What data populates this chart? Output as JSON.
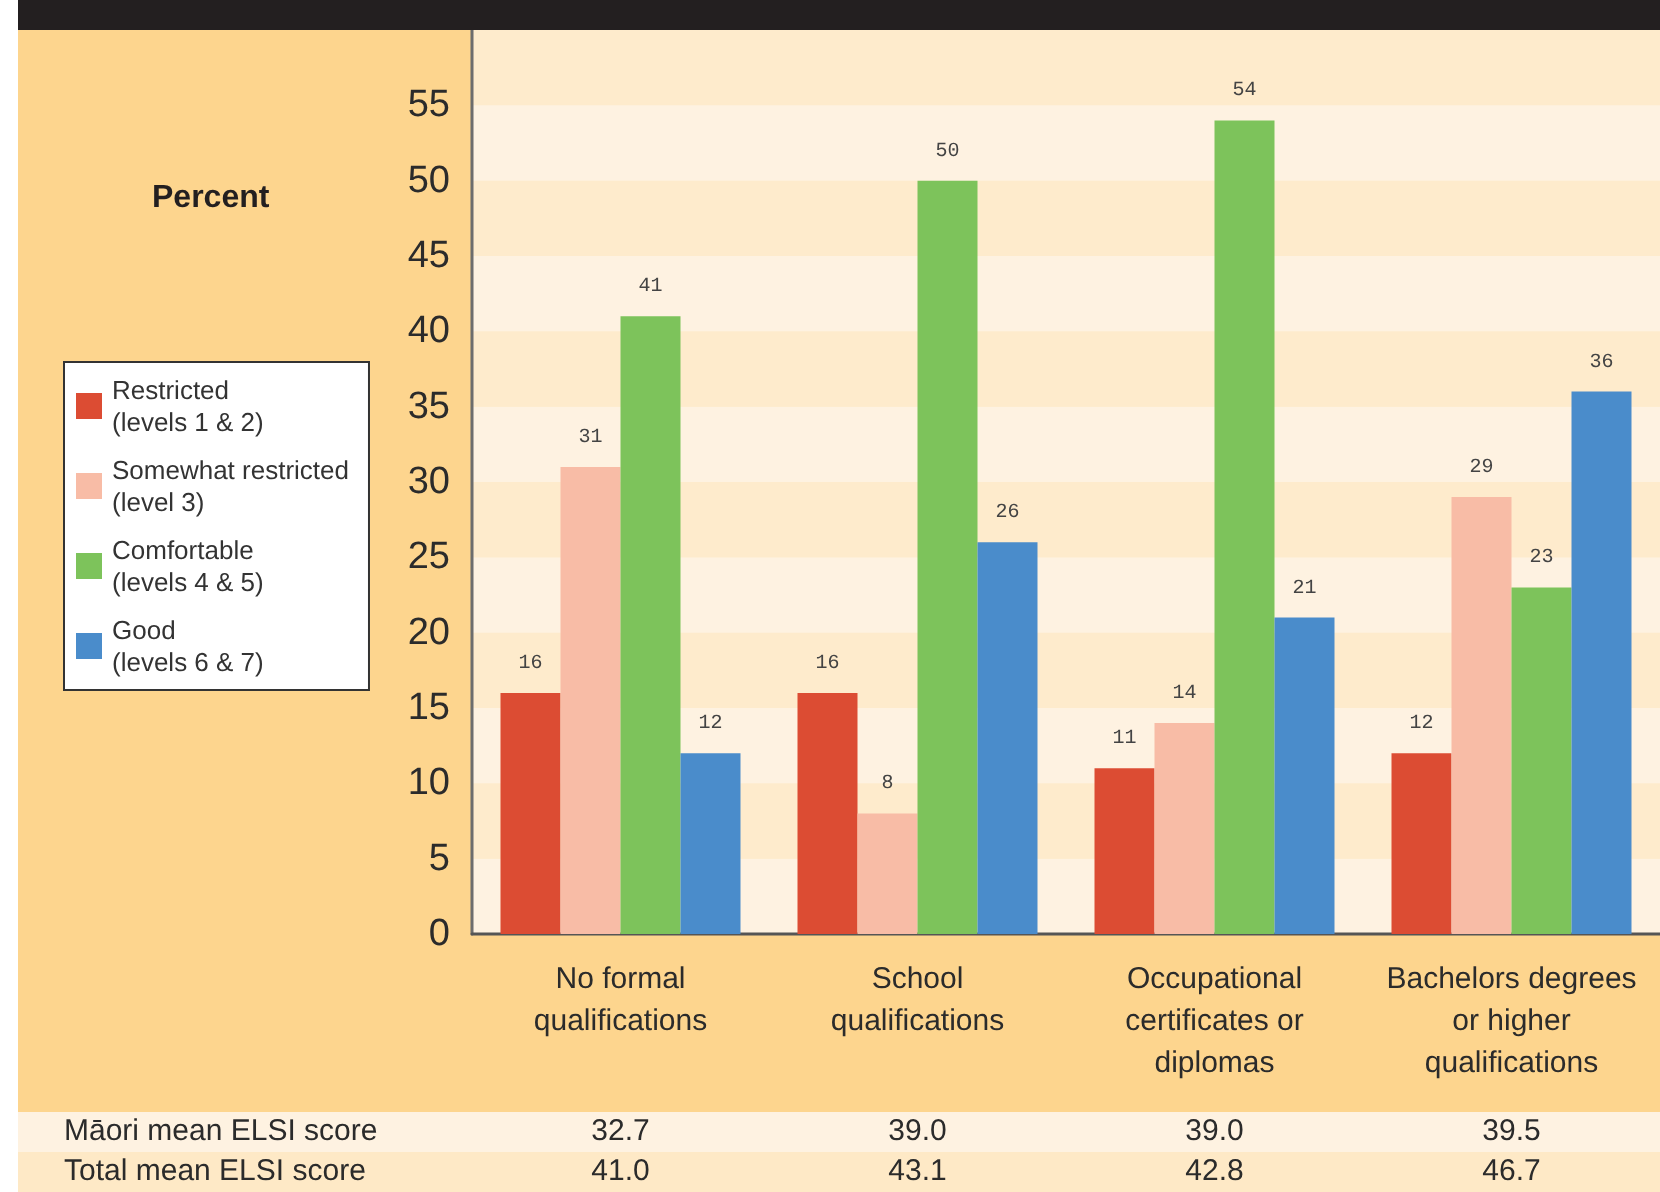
{
  "chart_data": {
    "type": "bar",
    "ylabel": "Percent",
    "categories": [
      "No formal\nqualifications",
      "School\nqualifications",
      "Occupational\ncertificates or\ndiplomas",
      "Bachelors degrees\nor higher\nqualifications"
    ],
    "series": [
      {
        "name": "Restricted\n(levels 1 & 2)",
        "color": "#dc4c33",
        "values": [
          16,
          16,
          11,
          12
        ]
      },
      {
        "name": "Somewhat restricted\n(level 3)",
        "color": "#f8bca6",
        "values": [
          31,
          8,
          14,
          29
        ]
      },
      {
        "name": "Comfortable\n(levels 4 & 5)",
        "color": "#7dc35b",
        "values": [
          41,
          50,
          54,
          23
        ]
      },
      {
        "name": "Good\n(levels 6 & 7)",
        "color": "#4a8ccb",
        "values": [
          12,
          26,
          21,
          36
        ]
      }
    ],
    "ylim": [
      0,
      60
    ],
    "yticks": [
      0,
      5,
      10,
      15,
      20,
      25,
      30,
      35,
      40,
      45,
      50,
      55
    ],
    "legend": "left",
    "data_labels": true,
    "annotations": [
      "Māori mean ELSI score",
      "32.7",
      "39.0",
      "39.0",
      "39.5",
      "Total mean ELSI score",
      "41.0",
      "43.1",
      "42.8",
      "46.7"
    ]
  }
}
